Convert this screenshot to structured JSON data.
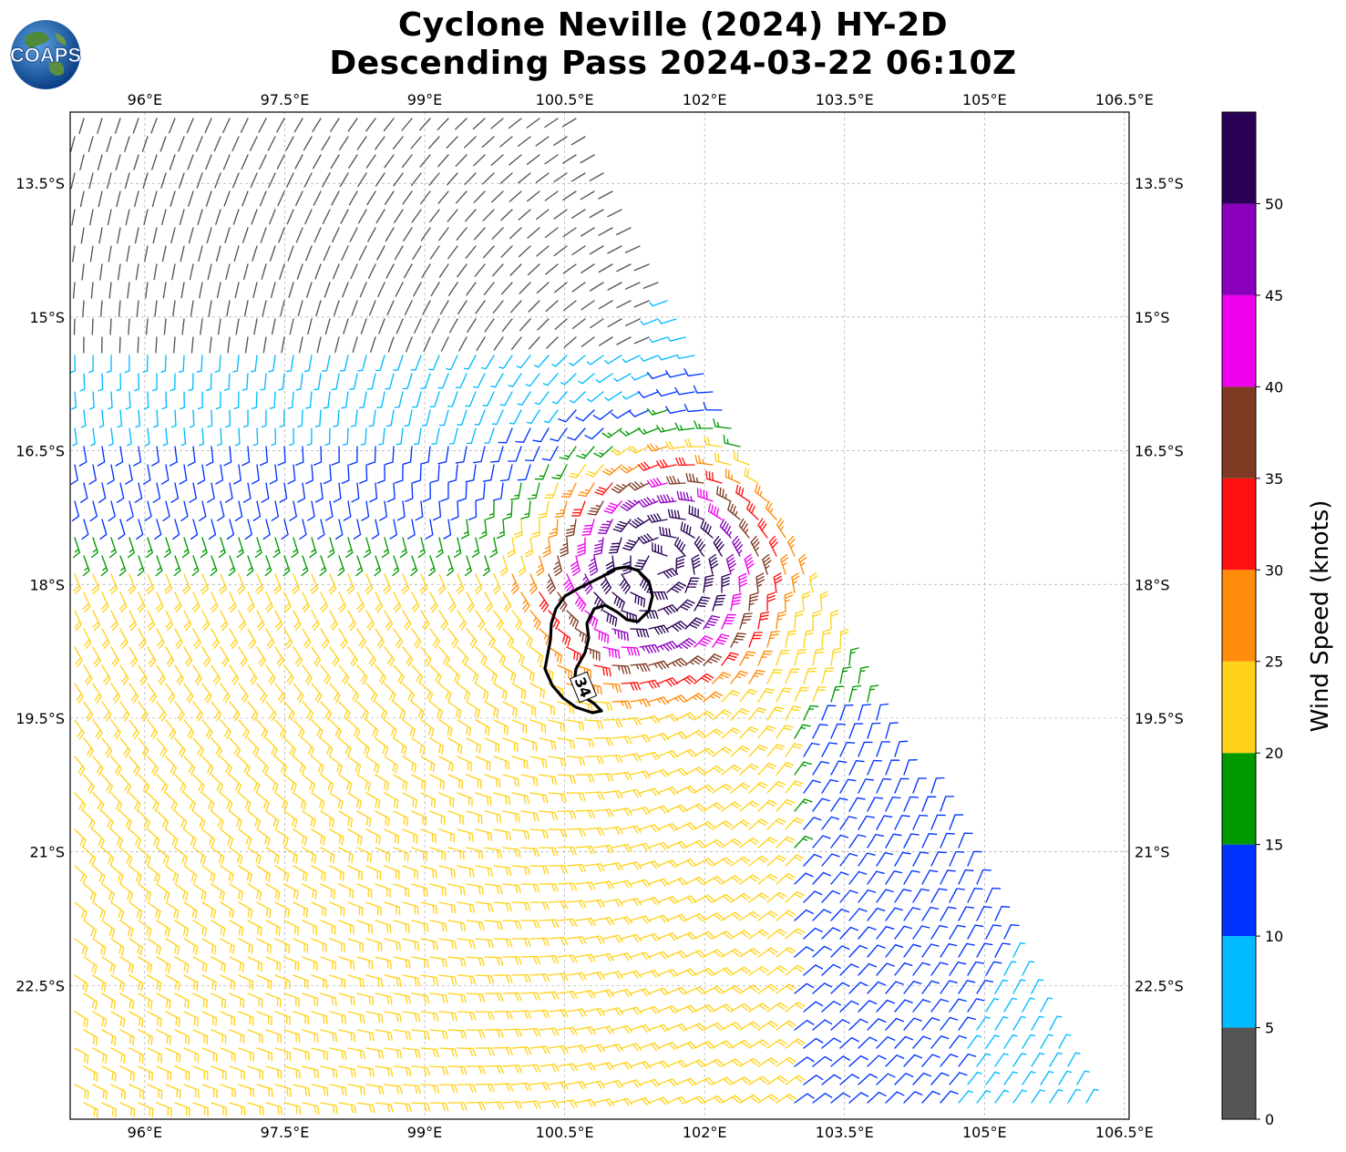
{
  "title": {
    "line1": "Cyclone Neville (2024) HY-2D",
    "line2": "Descending Pass 2024-03-22 06:10Z"
  },
  "logo": {
    "text": "COAPS"
  },
  "map": {
    "lon_range": [
      95.2,
      106.55
    ],
    "lat_range": [
      -24.0,
      -12.7
    ],
    "lon_ticks": [
      "96°E",
      "97.5°E",
      "99°E",
      "100.5°E",
      "102°E",
      "103.5°E",
      "105°E",
      "106.5°E"
    ],
    "lon_tick_values": [
      96,
      97.5,
      99,
      100.5,
      102,
      103.5,
      105,
      106.5
    ],
    "lat_ticks": [
      "13.5°S",
      "15°S",
      "16.5°S",
      "18°S",
      "19.5°S",
      "21°S",
      "22.5°S"
    ],
    "lat_tick_values": [
      -13.5,
      -15,
      -16.5,
      -18,
      -19.5,
      -21,
      -22.5
    ],
    "contour_label": "34",
    "storm_center": {
      "lon": 101.5,
      "lat": -17.8
    }
  },
  "colorbar": {
    "label": "Wind Speed (knots)",
    "tick_labels": [
      "0",
      "5",
      "10",
      "15",
      "20",
      "25",
      "30",
      "35",
      "40",
      "45",
      "50"
    ],
    "bins": [
      {
        "min": 0,
        "max": 5,
        "color": "#555555"
      },
      {
        "min": 5,
        "max": 10,
        "color": "#00bbff"
      },
      {
        "min": 10,
        "max": 15,
        "color": "#0033ff"
      },
      {
        "min": 15,
        "max": 20,
        "color": "#009900"
      },
      {
        "min": 20,
        "max": 25,
        "color": "#ffd21a"
      },
      {
        "min": 25,
        "max": 30,
        "color": "#ff8c0a"
      },
      {
        "min": 30,
        "max": 35,
        "color": "#ff1010"
      },
      {
        "min": 35,
        "max": 40,
        "color": "#7f3a24"
      },
      {
        "min": 40,
        "max": 45,
        "color": "#ee00ee"
      },
      {
        "min": 45,
        "max": 50,
        "color": "#8a00bb"
      },
      {
        "min": 50,
        "max": 55,
        "color": "#2a0055"
      }
    ]
  }
}
